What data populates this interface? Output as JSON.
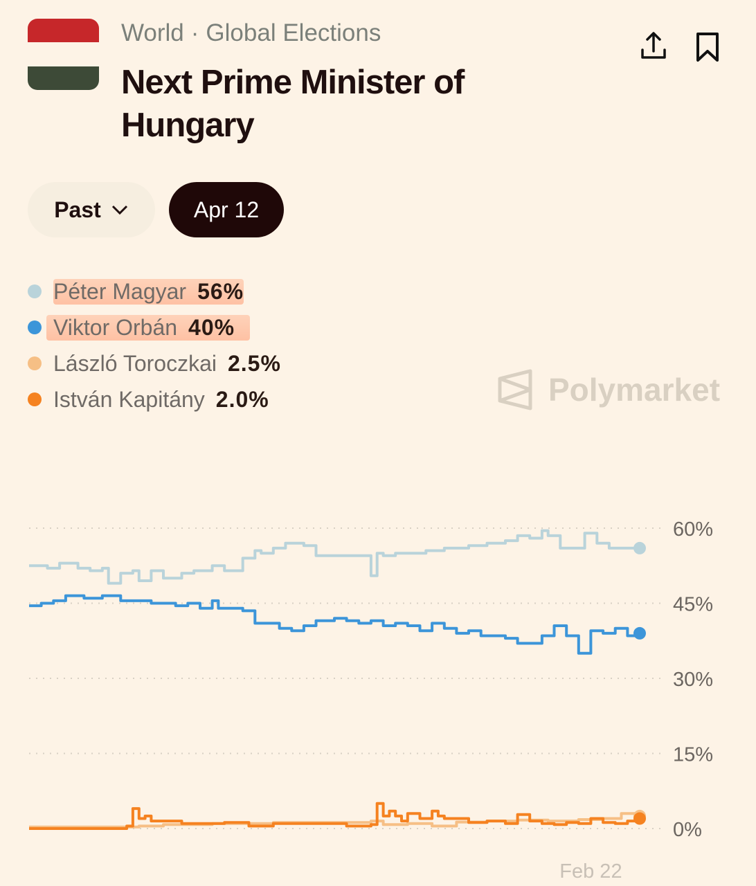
{
  "header": {
    "breadcrumb": [
      "World",
      "Global Elections"
    ],
    "separator": "·",
    "title": "Next Prime Minister of Hungary"
  },
  "flag_colors": [
    "#c6272a",
    "#fdf3e6",
    "#3d4a37"
  ],
  "filters": {
    "period": "Past",
    "date": "Apr 12"
  },
  "legend": [
    {
      "name": "Péter Magyar",
      "value": "56%",
      "color": "#b9d3da",
      "highlight": true
    },
    {
      "name": "Viktor Orbán",
      "value": "40%",
      "color": "#3c95d9",
      "highlight": true
    },
    {
      "name": "László Toroczkai",
      "value": "2.5%",
      "color": "#f6bf85",
      "highlight": false
    },
    {
      "name": "István Kapitány",
      "value": "2.0%",
      "color": "#f58220",
      "highlight": false
    }
  ],
  "watermark": "Polymarket",
  "chart_data": {
    "type": "line",
    "ylim": [
      0,
      60
    ],
    "yticks": [
      60,
      45,
      30,
      15,
      0
    ],
    "ytick_labels": [
      "60%",
      "45%",
      "30%",
      "15%",
      "0%"
    ],
    "xlim": [
      0,
      100
    ],
    "xtick_labels": [
      {
        "x": 92,
        "label": "Feb 22"
      }
    ],
    "grid": true,
    "series": [
      {
        "name": "Péter Magyar",
        "color": "#b9d3da",
        "x": [
          0,
          3,
          5,
          8,
          10,
          12,
          13,
          15,
          17,
          18,
          20,
          22,
          25,
          27,
          30,
          32,
          35,
          37,
          38,
          40,
          42,
          45,
          47,
          50,
          52,
          55,
          56,
          57,
          58,
          60,
          63,
          65,
          68,
          70,
          72,
          75,
          78,
          80,
          82,
          84,
          85,
          87,
          89,
          91,
          93,
          95,
          97,
          100
        ],
        "y": [
          52.5,
          52,
          53,
          52,
          51.5,
          52,
          49,
          51,
          51.5,
          49.5,
          51.5,
          50,
          51,
          51.5,
          52.5,
          51.5,
          54,
          55.5,
          55,
          56,
          57,
          56.5,
          54.5,
          54.5,
          54.5,
          54.5,
          50.5,
          55,
          54.5,
          55,
          55,
          55.5,
          56,
          56,
          56.5,
          57,
          57.5,
          58.5,
          58,
          59.5,
          58.5,
          56,
          56,
          59,
          57,
          56,
          56,
          56
        ]
      },
      {
        "name": "Viktor Orbán",
        "color": "#3c95d9",
        "x": [
          0,
          2,
          4,
          6,
          9,
          12,
          15,
          18,
          20,
          22,
          24,
          26,
          28,
          30,
          31,
          33,
          35,
          37,
          39,
          41,
          43,
          45,
          47,
          50,
          52,
          54,
          56,
          58,
          60,
          62,
          64,
          66,
          68,
          70,
          72,
          74,
          76,
          78,
          80,
          82,
          84,
          86,
          88,
          90,
          92,
          94,
          96,
          98,
          100
        ],
        "y": [
          44.5,
          45,
          45.5,
          46.5,
          46,
          46.5,
          45.5,
          45.5,
          45,
          45,
          44.5,
          45,
          44,
          45.5,
          44,
          44,
          43.5,
          41,
          41,
          40,
          39.5,
          40.5,
          41.5,
          42,
          41.5,
          41,
          41.5,
          40.5,
          41,
          40.5,
          39.5,
          41,
          40,
          39,
          39.5,
          38.5,
          38.5,
          38,
          37,
          37,
          38.5,
          40.5,
          38.5,
          35,
          39.5,
          39,
          40,
          38.5,
          39
        ]
      },
      {
        "name": "László Toroczkai",
        "color": "#f6bf85",
        "x": [
          0,
          15,
          18,
          22,
          30,
          40,
          50,
          56,
          58,
          62,
          66,
          70,
          75,
          80,
          85,
          90,
          94,
          97,
          100
        ],
        "y": [
          0.3,
          0.3,
          0.5,
          0.8,
          1,
          1.2,
          1.2,
          1.5,
          0.8,
          1,
          0.5,
          1.3,
          1.5,
          1.7,
          1.5,
          1.8,
          2,
          3,
          2.5
        ]
      },
      {
        "name": "István Kapitány",
        "color": "#f58220",
        "x": [
          0,
          15,
          16,
          17,
          18,
          19,
          20,
          22,
          25,
          28,
          32,
          36,
          40,
          44,
          48,
          52,
          56,
          57,
          58,
          59,
          60,
          61,
          62,
          64,
          66,
          67,
          68,
          70,
          72,
          75,
          78,
          80,
          82,
          84,
          86,
          88,
          90,
          92,
          94,
          96,
          98,
          100
        ],
        "y": [
          0,
          0,
          0.5,
          4,
          2,
          2.5,
          1.5,
          1.5,
          1,
          1,
          1.2,
          0.5,
          1,
          1,
          1,
          0.5,
          0.8,
          5,
          2.5,
          3.5,
          2.5,
          1.5,
          3,
          2,
          3.5,
          2.5,
          2,
          2,
          1.2,
          1.5,
          1,
          2.8,
          1.5,
          1,
          0.8,
          1.2,
          1,
          2,
          1.2,
          1,
          1.5,
          2
        ]
      }
    ]
  }
}
